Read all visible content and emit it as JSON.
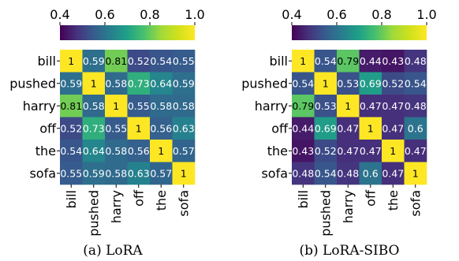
{
  "chart_data": [
    {
      "type": "heatmap",
      "caption": "(a)  LoRA",
      "rows": [
        "bill",
        "pushed",
        "harry",
        "off",
        "the",
        "sofa"
      ],
      "cols": [
        "bill",
        "pushed",
        "harry",
        "off",
        "the",
        "sofa"
      ],
      "values": [
        [
          1,
          0.59,
          0.81,
          0.52,
          0.54,
          0.55
        ],
        [
          0.59,
          1,
          0.58,
          0.73,
          0.64,
          0.59
        ],
        [
          0.81,
          0.58,
          1,
          0.55,
          0.58,
          0.58
        ],
        [
          0.52,
          0.73,
          0.55,
          1,
          0.56,
          0.63
        ],
        [
          0.54,
          0.64,
          0.58,
          0.56,
          1,
          0.57
        ],
        [
          0.55,
          0.59,
          0.58,
          0.63,
          0.57,
          1
        ]
      ],
      "colorbar": {
        "min": 0.4,
        "max": 1.0,
        "ticks": [
          "0.4",
          "0.6",
          "0.8",
          "1.0"
        ],
        "colormap": "viridis",
        "placement": "top"
      }
    },
    {
      "type": "heatmap",
      "caption": "(b)  LoRA-SIBO",
      "rows": [
        "bill",
        "pushed",
        "harry",
        "off",
        "the",
        "sofa"
      ],
      "cols": [
        "bill",
        "pushed",
        "harry",
        "off",
        "the",
        "sofa"
      ],
      "values": [
        [
          1,
          0.54,
          0.79,
          0.44,
          0.43,
          0.48
        ],
        [
          0.54,
          1,
          0.53,
          0.69,
          0.52,
          0.54
        ],
        [
          0.79,
          0.53,
          1,
          0.47,
          0.47,
          0.48
        ],
        [
          0.44,
          0.69,
          0.47,
          1,
          0.47,
          0.6
        ],
        [
          0.43,
          0.52,
          0.47,
          0.47,
          1,
          0.47
        ],
        [
          0.48,
          0.54,
          0.48,
          0.6,
          0.47,
          1
        ]
      ],
      "colorbar": {
        "min": 0.4,
        "max": 1.0,
        "ticks": [
          "0.4",
          "0.6",
          "0.8",
          "1.0"
        ],
        "colormap": "viridis",
        "placement": "top"
      }
    }
  ]
}
